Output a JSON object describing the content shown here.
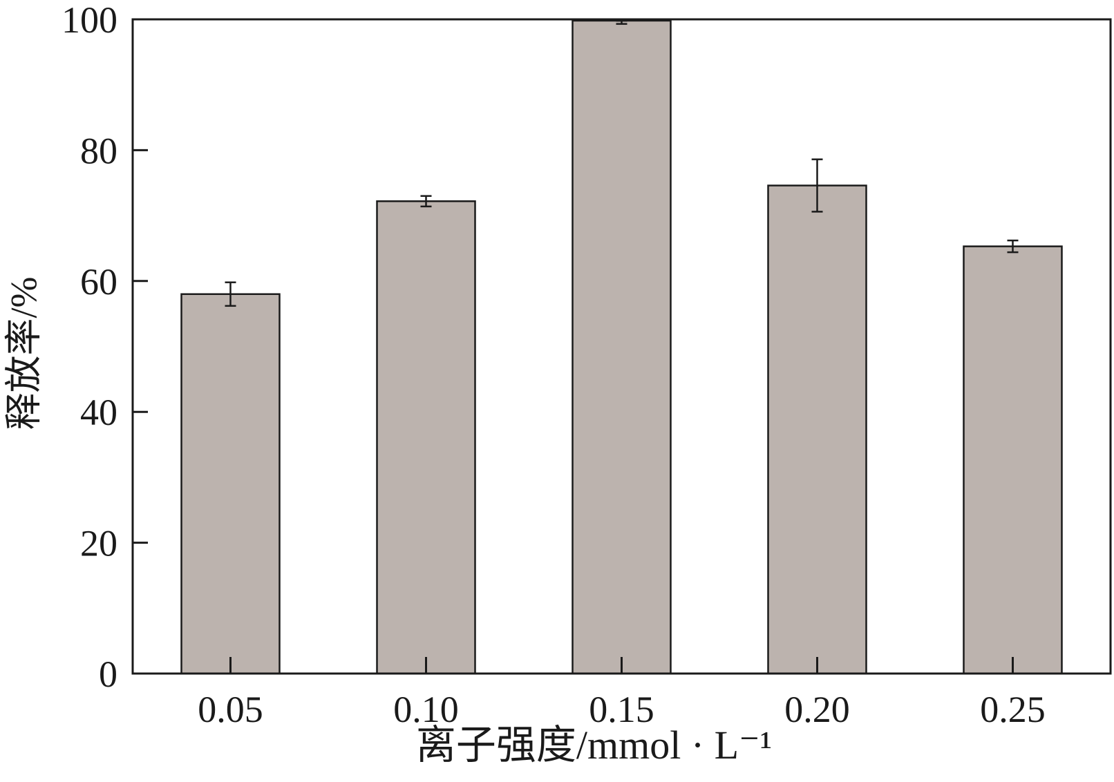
{
  "chart_data": {
    "type": "bar",
    "categories": [
      "0.05",
      "0.10",
      "0.15",
      "0.20",
      "0.25"
    ],
    "values": [
      58.0,
      72.2,
      99.8,
      74.6,
      65.3
    ],
    "error": [
      1.8,
      0.8,
      0.5,
      4.0,
      0.9
    ],
    "xlabel": "离子强度/mmol · L⁻¹",
    "ylabel": "释放率/%",
    "ylim": [
      0,
      100
    ],
    "yticks": [
      0,
      20,
      40,
      60,
      80,
      100
    ],
    "grid": false,
    "bar_color": "#bcb3ae",
    "edge_color": "#1a1a1a"
  }
}
